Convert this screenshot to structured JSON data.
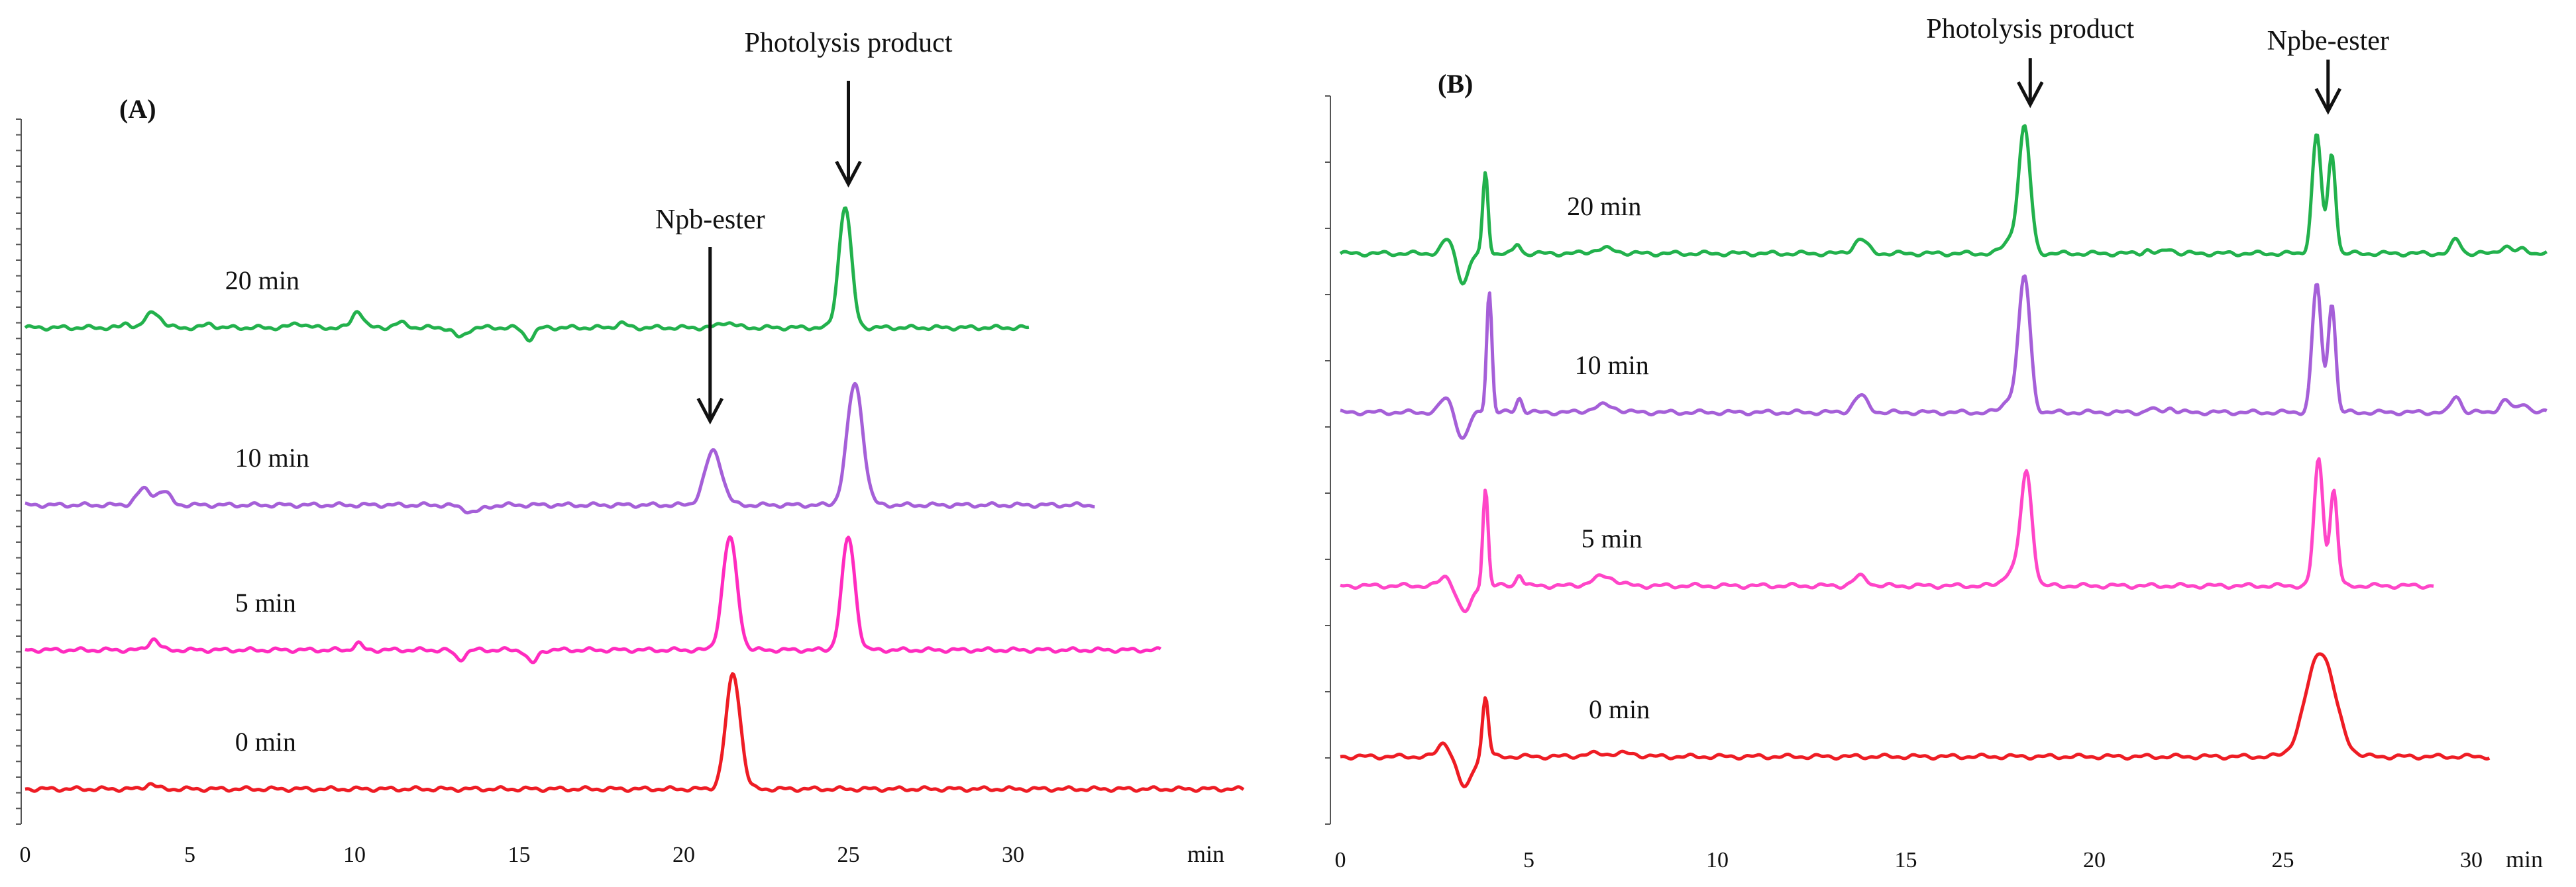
{
  "colors": {
    "axis": "#555555",
    "arrow": "#111111"
  },
  "chart_data": [
    {
      "type": "line",
      "panel_label": "(A)",
      "x_unit_label": "min",
      "xlim": [
        0,
        37
      ],
      "ticks": [
        "0",
        "5",
        "10",
        "15",
        "20",
        "25",
        "30"
      ],
      "annotations": [
        {
          "text": "Photolysis product",
          "x": 25.0,
          "target_series": 0
        },
        {
          "text": "Npb-ester",
          "x": 20.8,
          "target_series": 1
        }
      ],
      "series": [
        {
          "name": "20 min",
          "label": "20 min",
          "label_x": 7.2,
          "color": "#22b14c",
          "baseline": 0,
          "end": 30.5,
          "peaks": [
            {
              "t": 3.1,
              "h": 0.1,
              "w": 0.12
            },
            {
              "t": 3.9,
              "h": 0.35,
              "w": 0.22
            },
            {
              "t": 5.6,
              "h": 0.08,
              "w": 0.15
            },
            {
              "t": 8.3,
              "h": 0.1,
              "w": 0.2
            },
            {
              "t": 10.1,
              "h": 0.38,
              "w": 0.16
            },
            {
              "t": 11.4,
              "h": 0.1,
              "w": 0.2
            },
            {
              "t": 13.2,
              "h": -0.22,
              "w": 0.18
            },
            {
              "t": 15.3,
              "h": -0.25,
              "w": 0.16
            },
            {
              "t": 18.1,
              "h": 0.1,
              "w": 0.15
            },
            {
              "t": 21.3,
              "h": 0.12,
              "w": 0.22
            },
            {
              "t": 24.9,
              "h": 2.7,
              "w": 0.19
            }
          ]
        },
        {
          "name": "10 min",
          "label": "10 min",
          "label_x": 7.5,
          "color": "#a55fd8",
          "baseline": 0,
          "end": 32.5,
          "peaks": [
            {
              "t": 3.6,
              "h": 0.35,
              "w": 0.22
            },
            {
              "t": 4.2,
              "h": 0.3,
              "w": 0.2
            },
            {
              "t": 13.6,
              "h": -0.15,
              "w": 0.3
            },
            {
              "t": 20.9,
              "h": 1.2,
              "w": 0.26
            },
            {
              "t": 25.2,
              "h": 2.7,
              "w": 0.24
            }
          ]
        },
        {
          "name": "5 min",
          "label": "5 min",
          "label_x": 7.3,
          "color": "#ff2bbf",
          "baseline": 0,
          "end": 34.5,
          "peaks": [
            {
              "t": 3.9,
              "h": 0.25,
              "w": 0.15
            },
            {
              "t": 10.1,
              "h": 0.15,
              "w": 0.12
            },
            {
              "t": 13.2,
              "h": -0.2,
              "w": 0.16
            },
            {
              "t": 15.4,
              "h": -0.3,
              "w": 0.15
            },
            {
              "t": 21.4,
              "h": 2.5,
              "w": 0.22
            },
            {
              "t": 25.0,
              "h": 2.5,
              "w": 0.2
            }
          ]
        },
        {
          "name": "0 min",
          "label": "0 min",
          "label_x": 7.3,
          "color": "#ee1c24",
          "baseline": 0,
          "end": 37,
          "peaks": [
            {
              "t": 3.8,
              "h": 0.12,
              "w": 0.15
            },
            {
              "t": 21.5,
              "h": 2.55,
              "w": 0.22
            }
          ]
        }
      ]
    },
    {
      "type": "line",
      "panel_label": "(B)",
      "x_unit_label": "min",
      "xlim": [
        0,
        32
      ],
      "ticks": [
        "0",
        "5",
        "10",
        "15",
        "20",
        "25",
        "30"
      ],
      "annotations": [
        {
          "text": "Photolysis product",
          "x": 18.3,
          "target_series": 0
        },
        {
          "text": "Npbe-ester",
          "x": 26.2,
          "target_series": 0
        }
      ],
      "series": [
        {
          "name": "20 min",
          "label": "20 min",
          "label_x": 7.0,
          "color": "#22b14c",
          "baseline": 0,
          "end": 32,
          "peaks": [
            {
              "t": 2.85,
              "h": 0.3,
              "w": 0.15
            },
            {
              "t": 3.25,
              "h": -0.6,
              "w": 0.15
            },
            {
              "t": 3.85,
              "h": 1.7,
              "w": 0.07
            },
            {
              "t": 4.7,
              "h": 0.2,
              "w": 0.08
            },
            {
              "t": 7.0,
              "h": 0.1,
              "w": 0.3
            },
            {
              "t": 13.8,
              "h": 0.3,
              "w": 0.18
            },
            {
              "t": 17.8,
              "h": 0.3,
              "w": 0.2
            },
            {
              "t": 18.15,
              "h": 2.6,
              "w": 0.15
            },
            {
              "t": 21.4,
              "h": 0.08,
              "w": 0.1
            },
            {
              "t": 22.0,
              "h": 0.1,
              "w": 0.12
            },
            {
              "t": 25.9,
              "h": 2.5,
              "w": 0.12
            },
            {
              "t": 26.3,
              "h": 2.1,
              "w": 0.1
            },
            {
              "t": 29.6,
              "h": 0.3,
              "w": 0.12
            },
            {
              "t": 30.9,
              "h": 0.15,
              "w": 0.15
            },
            {
              "t": 31.4,
              "h": 0.1,
              "w": 0.12
            }
          ]
        },
        {
          "name": "10 min",
          "label": "10 min",
          "label_x": 7.2,
          "color": "#a55fd8",
          "baseline": 0,
          "end": 32,
          "peaks": [
            {
              "t": 2.8,
              "h": 0.3,
              "w": 0.15
            },
            {
              "t": 3.25,
              "h": -0.55,
              "w": 0.15
            },
            {
              "t": 3.95,
              "h": 2.55,
              "w": 0.07
            },
            {
              "t": 4.75,
              "h": 0.3,
              "w": 0.08
            },
            {
              "t": 7.0,
              "h": 0.15,
              "w": 0.3
            },
            {
              "t": 13.8,
              "h": 0.35,
              "w": 0.18
            },
            {
              "t": 17.8,
              "h": 0.3,
              "w": 0.2
            },
            {
              "t": 18.15,
              "h": 2.8,
              "w": 0.15
            },
            {
              "t": 21.5,
              "h": 0.08,
              "w": 0.1
            },
            {
              "t": 22.0,
              "h": 0.1,
              "w": 0.12
            },
            {
              "t": 25.9,
              "h": 2.7,
              "w": 0.12
            },
            {
              "t": 26.3,
              "h": 2.3,
              "w": 0.1
            },
            {
              "t": 29.6,
              "h": 0.35,
              "w": 0.12
            },
            {
              "t": 30.9,
              "h": 0.25,
              "w": 0.15
            },
            {
              "t": 31.4,
              "h": 0.2,
              "w": 0.12
            }
          ]
        },
        {
          "name": "5 min",
          "label": "5 min",
          "label_x": 7.2,
          "color": "#ff45c8",
          "baseline": 0,
          "end": 29,
          "peaks": [
            {
              "t": 2.8,
              "h": 0.2,
              "w": 0.15
            },
            {
              "t": 3.3,
              "h": -0.55,
              "w": 0.18
            },
            {
              "t": 3.85,
              "h": 2.05,
              "w": 0.07
            },
            {
              "t": 4.75,
              "h": 0.25,
              "w": 0.08
            },
            {
              "t": 7.0,
              "h": 0.2,
              "w": 0.3
            },
            {
              "t": 13.8,
              "h": 0.2,
              "w": 0.18
            },
            {
              "t": 17.8,
              "h": 0.3,
              "w": 0.2
            },
            {
              "t": 18.2,
              "h": 2.35,
              "w": 0.15
            },
            {
              "t": 25.95,
              "h": 2.65,
              "w": 0.12
            },
            {
              "t": 26.35,
              "h": 2.0,
              "w": 0.1
            }
          ]
        },
        {
          "name": "0 min",
          "label": "0 min",
          "label_x": 7.4,
          "color": "#ee1c24",
          "baseline": 0,
          "end": 30.5,
          "peaks": [
            {
              "t": 2.75,
              "h": 0.3,
              "w": 0.15
            },
            {
              "t": 3.3,
              "h": -0.65,
              "w": 0.18
            },
            {
              "t": 3.85,
              "h": 1.25,
              "w": 0.08
            },
            {
              "t": 6.8,
              "h": 0.06,
              "w": 0.35
            },
            {
              "t": 7.6,
              "h": 0.06,
              "w": 0.3
            },
            {
              "t": 26.0,
              "h": 2.2,
              "w": 0.38
            }
          ]
        }
      ]
    }
  ]
}
